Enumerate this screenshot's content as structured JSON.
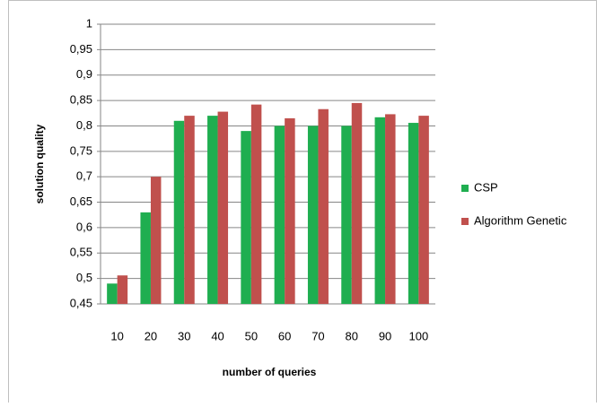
{
  "chart_data": {
    "type": "bar",
    "categories": [
      "10",
      "20",
      "30",
      "40",
      "50",
      "60",
      "70",
      "80",
      "90",
      "100"
    ],
    "series": [
      {
        "name": "CSP",
        "color": "#1fae50",
        "values": [
          0.49,
          0.63,
          0.81,
          0.82,
          0.79,
          0.8,
          0.8,
          0.8,
          0.817,
          0.806
        ]
      },
      {
        "name": "Algorithm Genetic",
        "color": "#c0504d",
        "values": [
          0.506,
          0.7,
          0.82,
          0.828,
          0.842,
          0.815,
          0.833,
          0.845,
          0.823,
          0.82
        ]
      }
    ],
    "ylim": [
      0.45,
      1
    ],
    "yticks": [
      {
        "value": 0.45,
        "label": "0,45"
      },
      {
        "value": 0.5,
        "label": "0,5"
      },
      {
        "value": 0.55,
        "label": "0,55"
      },
      {
        "value": 0.6,
        "label": "0,6"
      },
      {
        "value": 0.65,
        "label": "0,65"
      },
      {
        "value": 0.7,
        "label": "0,7"
      },
      {
        "value": 0.75,
        "label": "0,75"
      },
      {
        "value": 0.8,
        "label": "0,8"
      },
      {
        "value": 0.85,
        "label": "0,85"
      },
      {
        "value": 0.9,
        "label": "0,9"
      },
      {
        "value": 0.95,
        "label": "0,95"
      },
      1
    ],
    "y_label": "solution quality",
    "x_label": "number of queries",
    "grid": true,
    "legend": "right"
  }
}
